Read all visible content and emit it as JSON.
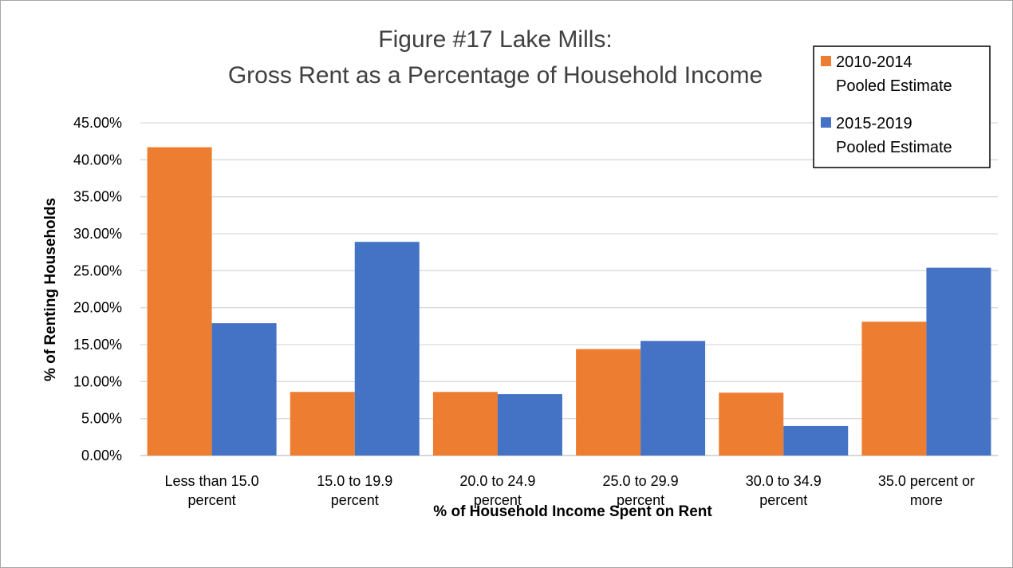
{
  "chart_data": {
    "type": "bar",
    "title_lines": [
      "Figure #17  Lake Mills:",
      "Gross Rent as a Percentage of Household Income"
    ],
    "xlabel": "% of Household Income Spent on Rent",
    "ylabel": "% of Renting Households",
    "categories": [
      [
        "Less than 15.0",
        "percent"
      ],
      [
        "15.0 to 19.9",
        "percent"
      ],
      [
        "20.0 to 24.9",
        "percent"
      ],
      [
        "25.0 to 29.9",
        "percent"
      ],
      [
        "30.0 to 34.9",
        "percent"
      ],
      [
        "35.0 percent or",
        "more"
      ]
    ],
    "series": [
      {
        "name_lines": [
          "2010-2014",
          "Pooled Estimate"
        ],
        "color": "#ed7d31",
        "values": [
          41.7,
          8.6,
          8.6,
          14.4,
          8.5,
          18.1
        ]
      },
      {
        "name_lines": [
          "2015-2019",
          "Pooled Estimate"
        ],
        "color": "#4472c4",
        "values": [
          17.9,
          28.9,
          8.3,
          15.5,
          4.0,
          25.4
        ]
      }
    ],
    "ylim": [
      0,
      45
    ],
    "yticks": [
      0,
      5,
      10,
      15,
      20,
      25,
      30,
      35,
      40,
      45
    ],
    "ytick_labels": [
      "0.00%",
      "5.00%",
      "10.00%",
      "15.00%",
      "20.00%",
      "25.00%",
      "30.00%",
      "35.00%",
      "40.00%",
      "45.00%"
    ],
    "grid": true,
    "legend_position": "top-right",
    "gridline_color": "#d9d9d9"
  }
}
